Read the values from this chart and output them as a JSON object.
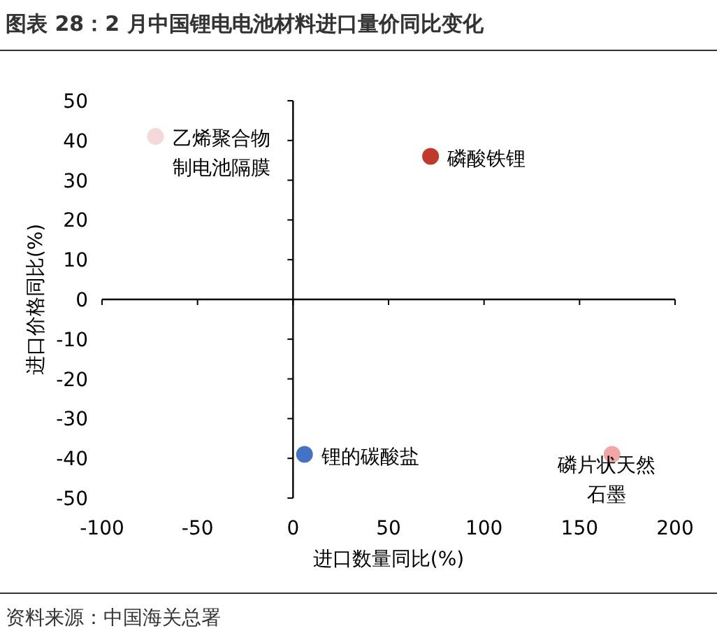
{
  "chart_data": {
    "type": "scatter",
    "title": "图表 28：2 月中国锂电电池材料进口量价同比变化",
    "xlabel": "进口数量同比(%)",
    "ylabel": "进口价格同比(%)",
    "xlim": [
      -100,
      200
    ],
    "xticks": [
      -100,
      -50,
      0,
      50,
      100,
      150,
      200
    ],
    "ylim": [
      -50,
      50
    ],
    "yticks": [
      -50,
      -40,
      -30,
      -20,
      -10,
      0,
      10,
      20,
      30,
      40,
      50
    ],
    "legend": false,
    "marker": "circle",
    "series": [
      {
        "name": "乙烯聚合物制电池隔膜",
        "color": "#f5d9d9",
        "x": [
          -72
        ],
        "values": [
          41
        ]
      },
      {
        "name": "磷酸铁锂",
        "color": "#c0392b",
        "x": [
          72
        ],
        "values": [
          36
        ]
      },
      {
        "name": "锂的碳酸盐",
        "color": "#4472c4",
        "x": [
          6
        ],
        "values": [
          -39
        ]
      },
      {
        "name": "磷片状天然石墨",
        "color": "#f2a7a7",
        "x": [
          167
        ],
        "values": [
          -39
        ]
      }
    ],
    "annotations": [
      "资料来源：中国海关总署"
    ]
  }
}
